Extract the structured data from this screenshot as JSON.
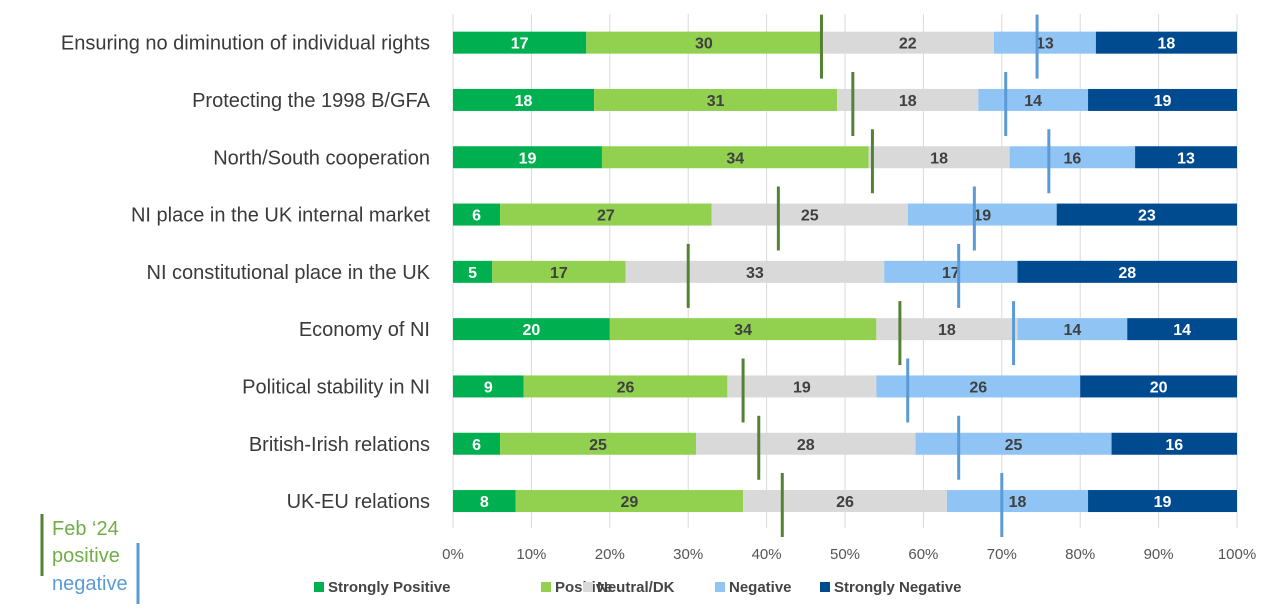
{
  "chart_data": {
    "type": "bar",
    "orientation": "horizontal",
    "stacked": true,
    "normalized": true,
    "title": "",
    "xlabel": "",
    "ylabel": "",
    "xlim": [
      0,
      100
    ],
    "x_ticks": [
      "0%",
      "10%",
      "20%",
      "30%",
      "40%",
      "50%",
      "60%",
      "70%",
      "80%",
      "90%",
      "100%"
    ],
    "grid": "vertical",
    "legend_position": "bottom",
    "categories": [
      "Ensuring no diminution of individual rights",
      "Protecting the 1998 B/GFA",
      "North/South cooperation",
      "NI place in the UK internal market",
      "NI constitutional place in the UK",
      "Economy of NI",
      "Political stability in NI",
      "British-Irish relations",
      "UK-EU relations"
    ],
    "series": [
      {
        "name": "Strongly Positive",
        "color": "#00b050",
        "label_color": "#ffffff",
        "values": [
          17,
          18,
          19,
          6,
          5,
          20,
          9,
          6,
          8
        ]
      },
      {
        "name": "Positive",
        "color": "#92d050",
        "label_color": "#404040",
        "values": [
          30,
          31,
          34,
          27,
          17,
          34,
          26,
          25,
          29
        ]
      },
      {
        "name": "Neutral/DK",
        "color": "#d9d9d9",
        "label_color": "#404040",
        "values": [
          22,
          18,
          18,
          25,
          33,
          18,
          19,
          28,
          26
        ]
      },
      {
        "name": "Negative",
        "color": "#8fc4f5",
        "label_color": "#404040",
        "values": [
          13,
          14,
          16,
          19,
          17,
          14,
          26,
          25,
          18
        ]
      },
      {
        "name": "Strongly Negative",
        "color": "#004a8f",
        "label_color": "#ffffff",
        "values": [
          18,
          19,
          13,
          23,
          28,
          14,
          20,
          16,
          19
        ]
      }
    ],
    "markers": [
      {
        "name": "Feb '24 positive",
        "color": "#548235",
        "values": [
          47,
          51,
          53.5,
          41.5,
          30,
          57,
          37,
          39,
          42
        ]
      },
      {
        "name": "Feb '24 negative",
        "color": "#5b9bd5",
        "values": [
          74.5,
          70.5,
          76,
          66.5,
          64.5,
          71.5,
          58,
          64.5,
          70
        ]
      }
    ],
    "annotation": {
      "line1": "Feb ‘24",
      "line2": "positive",
      "line3": "negative",
      "positive_color": "#70ad47",
      "negative_color": "#5b9bd5"
    }
  }
}
